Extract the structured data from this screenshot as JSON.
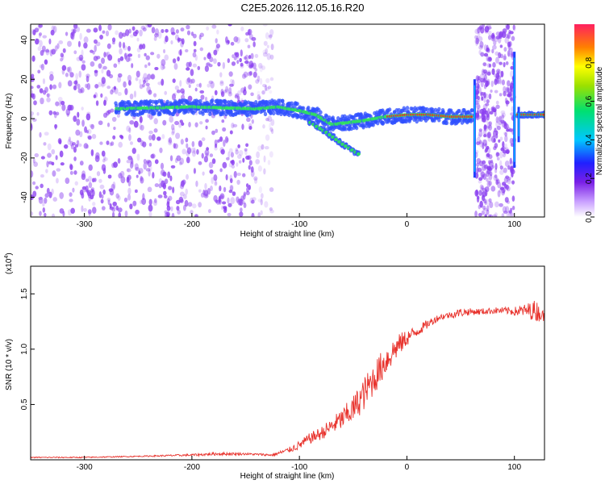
{
  "title": "C2E5.2026.112.05.16.R20",
  "chart_data": [
    {
      "type": "heatmap",
      "xlabel": "Height of straight line (km)",
      "ylabel": "Frequency (Hz)",
      "xlim": [
        -350,
        128
      ],
      "ylim": [
        -50,
        48
      ],
      "xticks": [
        -300,
        -200,
        -100,
        0,
        100
      ],
      "xtick_labels": [
        "-300",
        "-200",
        "-100",
        "0",
        "100"
      ],
      "yticks": [
        -40,
        -20,
        0,
        20,
        40
      ],
      "ytick_labels": [
        "-40",
        "-20",
        "0",
        "20",
        "40"
      ],
      "colorbar": {
        "label": "Normalized spectral amplitude",
        "range": [
          0,
          1
        ],
        "ticks": [
          0.0,
          0.2,
          0.4,
          0.6,
          0.8
        ],
        "tick_labels": [
          "0.0",
          "0.2",
          "0.4",
          "0.6",
          "0.8"
        ]
      },
      "ridge": {
        "x": [
          -270,
          -200,
          -140,
          -120,
          -100,
          -85,
          -70,
          -55,
          -40,
          -20,
          0,
          20,
          40,
          60
        ],
        "y": [
          5,
          6,
          5,
          6,
          4,
          2,
          -3,
          -2,
          -1,
          1,
          2,
          2,
          1,
          1
        ]
      },
      "ridge_branch": {
        "x": [
          -90,
          -75,
          -60,
          -45
        ],
        "y": [
          -2,
          -7,
          -13,
          -18
        ]
      },
      "ridge_tail": {
        "x": [
          103,
          110,
          128
        ],
        "y": [
          2,
          2,
          2
        ]
      },
      "noise_bands": [
        {
          "x": [
            -350,
            -140
          ],
          "level": "strong"
        },
        {
          "x": [
            64,
            100
          ],
          "level": "strong"
        }
      ],
      "spikes": [
        {
          "x": 63,
          "y": [
            -30,
            20
          ]
        },
        {
          "x": 100,
          "y": [
            -25,
            34
          ]
        },
        {
          "x": 104,
          "y": [
            -12,
            6
          ]
        }
      ]
    },
    {
      "type": "line",
      "xlabel": "Height of straight line (km)",
      "ylabel": "SNR (10 * v/v)",
      "multiplier_label": "(x10",
      "multiplier_exp": "4",
      "multiplier_close": ")",
      "xlim": [
        -350,
        128
      ],
      "ylim": [
        0,
        1.75
      ],
      "xticks": [
        -300,
        -200,
        -100,
        0,
        100
      ],
      "xtick_labels": [
        "-300",
        "-200",
        "-100",
        "0",
        "100"
      ],
      "yticks": [
        0.5,
        1.0,
        1.5
      ],
      "ytick_labels": [
        "0.5",
        "1.0",
        "1.5"
      ],
      "series": [
        {
          "name": "SNR",
          "color": "#e8322c",
          "x": [
            -350,
            -300,
            -250,
            -200,
            -175,
            -150,
            -125,
            -110,
            -100,
            -90,
            -80,
            -70,
            -60,
            -50,
            -40,
            -30,
            -20,
            -10,
            0,
            10,
            20,
            30,
            40,
            50,
            60,
            70,
            80,
            90,
            100,
            110,
            120,
            128
          ],
          "y": [
            0.02,
            0.02,
            0.03,
            0.04,
            0.05,
            0.05,
            0.04,
            0.08,
            0.12,
            0.18,
            0.22,
            0.28,
            0.34,
            0.42,
            0.55,
            0.7,
            0.85,
            0.98,
            1.08,
            1.15,
            1.22,
            1.28,
            1.3,
            1.32,
            1.33,
            1.33,
            1.34,
            1.34,
            1.33,
            1.33,
            1.32,
            1.28
          ],
          "noise_amp": [
            0.01,
            0.01,
            0.01,
            0.02,
            0.03,
            0.02,
            0.02,
            0.05,
            0.08,
            0.1,
            0.12,
            0.15,
            0.2,
            0.25,
            0.3,
            0.3,
            0.28,
            0.22,
            0.15,
            0.1,
            0.08,
            0.06,
            0.06,
            0.08,
            0.06,
            0.06,
            0.06,
            0.06,
            0.08,
            0.12,
            0.2,
            0.08
          ]
        }
      ]
    }
  ],
  "colors": {
    "line": "#e8322c",
    "noise": "#8a3ff0",
    "ridge_core": "#e83030",
    "ridge_mid": "#30e060",
    "ridge_edge": "#3050ff"
  }
}
